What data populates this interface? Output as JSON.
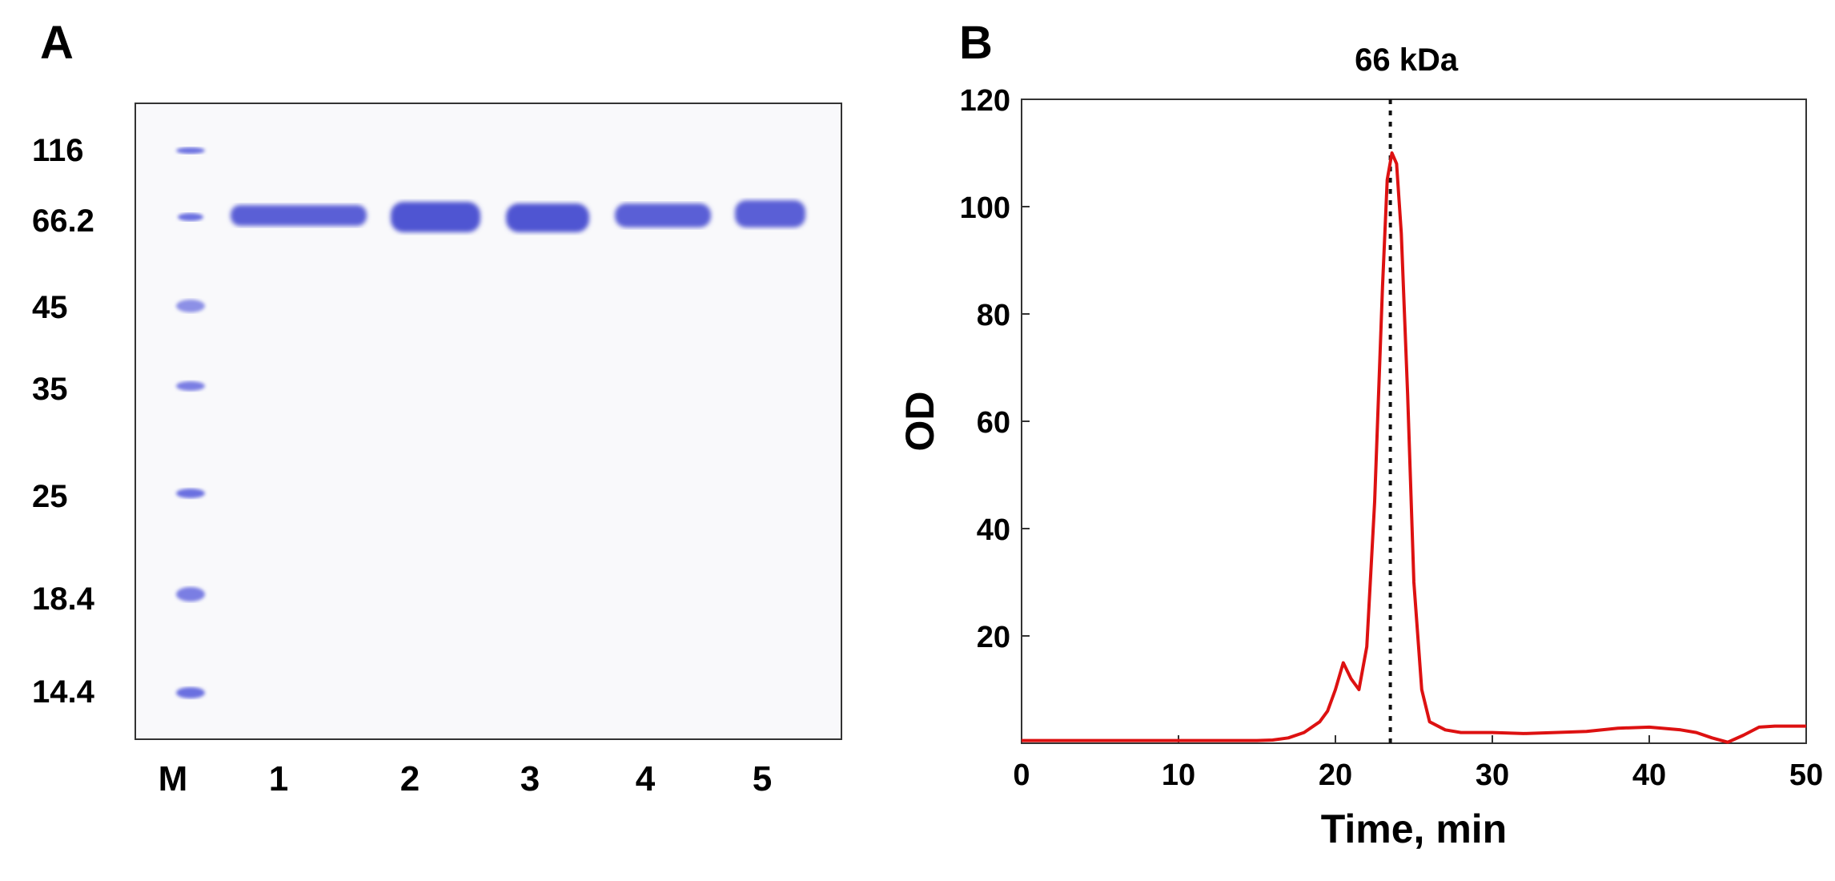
{
  "panel_a": {
    "letter": "A",
    "mw_markers": [
      "116",
      "66.2",
      "45",
      "35",
      "25",
      "18.4",
      "14.4"
    ],
    "lane_labels": [
      "M",
      "1",
      "2",
      "3",
      "4",
      "5"
    ]
  },
  "panel_b": {
    "letter": "B",
    "annotation": "66 kDa"
  },
  "colors": {
    "trace": "#dd1111",
    "band": "#5a5fd6",
    "marker_band": "#6a6fe0"
  },
  "chart_data": {
    "type": "line",
    "xlabel": "Time, min",
    "ylabel": "OD",
    "xlim": [
      0,
      50
    ],
    "ylim": [
      0,
      120
    ],
    "xticks": [
      0,
      10,
      20,
      30,
      40,
      50
    ],
    "yticks": [
      0,
      20,
      40,
      60,
      80,
      100,
      120
    ],
    "annotation_line": {
      "x": 23.5,
      "label": "66 kDa"
    },
    "series": [
      {
        "x": [
          0,
          5,
          10,
          15,
          16,
          17,
          18,
          19,
          19.5,
          20,
          20.5,
          21,
          21.5,
          22,
          22.5,
          23,
          23.3,
          23.6,
          23.9,
          24.2,
          24.6,
          25,
          25.5,
          26,
          27,
          28,
          30,
          32,
          34,
          36,
          38,
          40,
          42,
          43,
          44,
          45,
          46,
          47,
          48,
          50
        ],
        "y": [
          0.5,
          0.5,
          0.5,
          0.5,
          0.6,
          1,
          2,
          4,
          6,
          10,
          15,
          12,
          10,
          18,
          45,
          85,
          105,
          110,
          108,
          95,
          65,
          30,
          10,
          4,
          2.5,
          2,
          2,
          1.8,
          2,
          2.2,
          2.8,
          3,
          2.5,
          2,
          1,
          0.2,
          1.5,
          3,
          3.2,
          3.2
        ]
      }
    ]
  }
}
